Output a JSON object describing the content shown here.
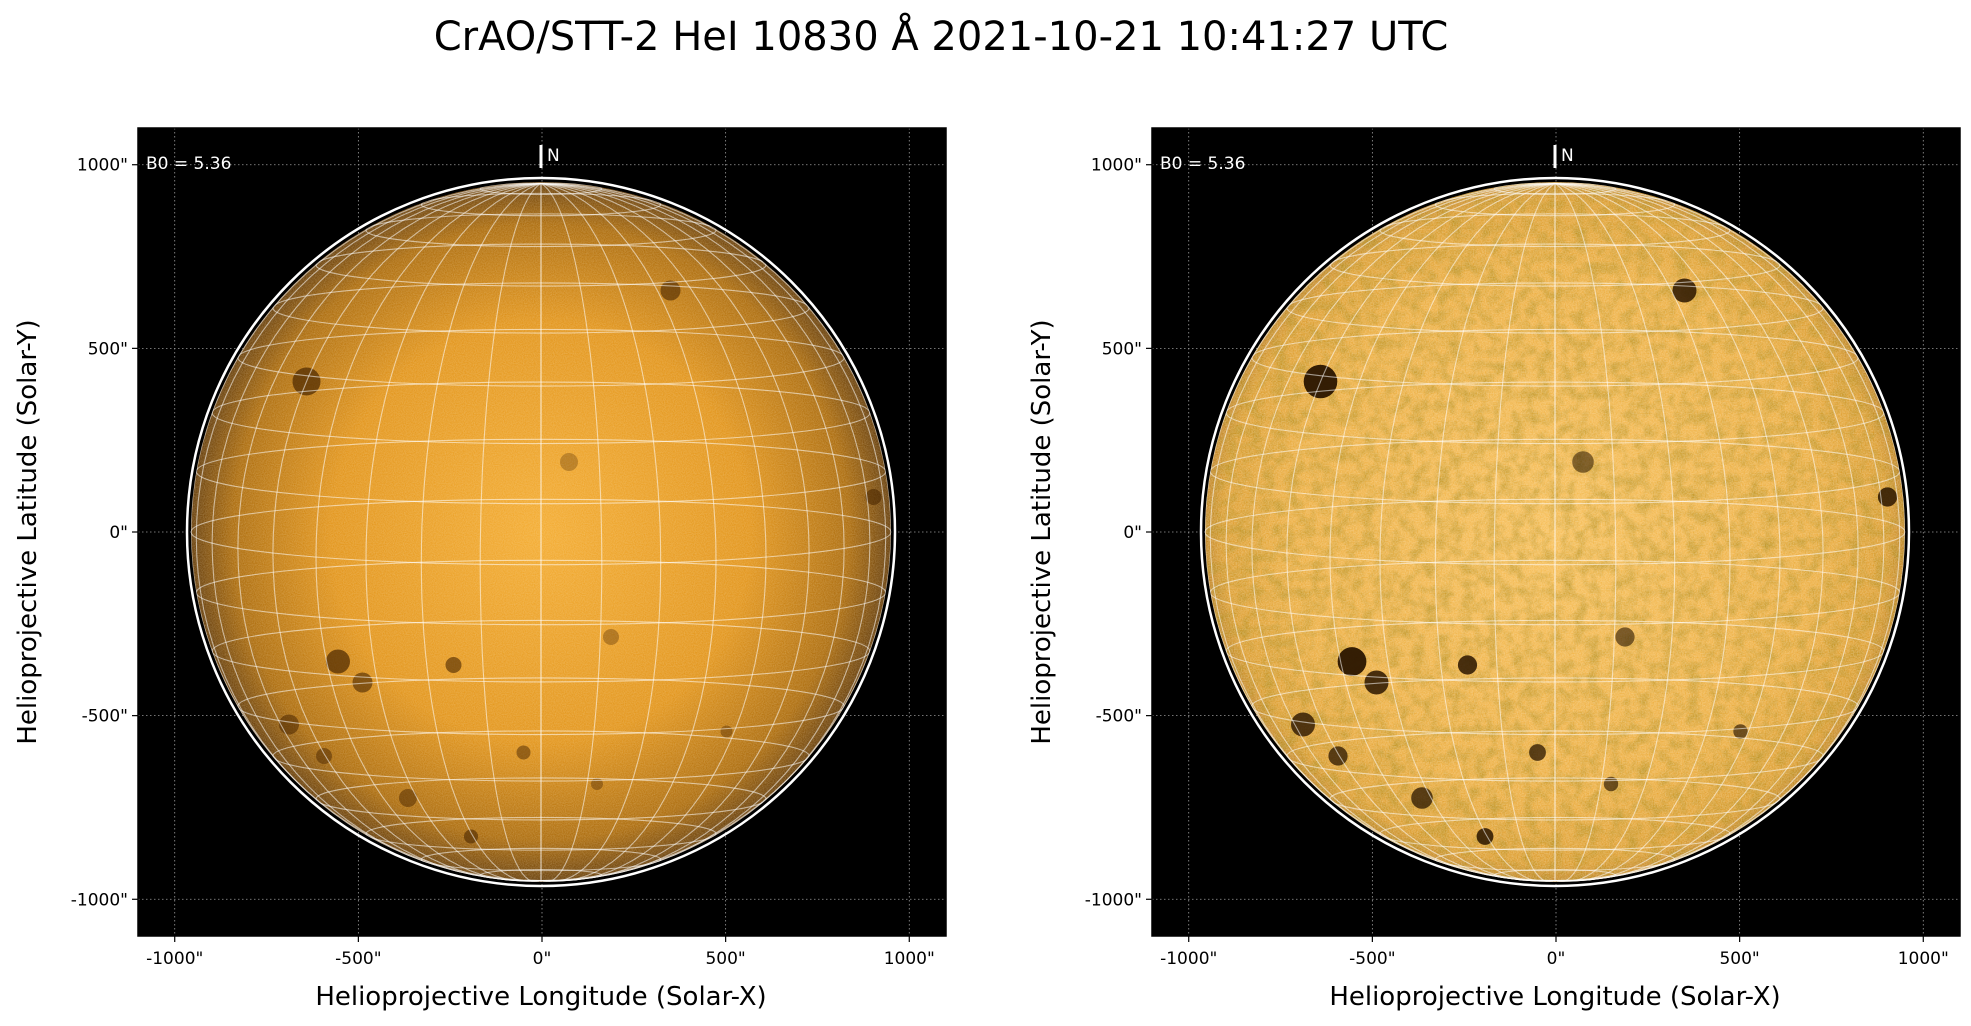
{
  "figure": {
    "title": "CrAO/STT-2 HeI 10830 Å 2021-10-21 10:41:27 UTC"
  },
  "panels": [
    {
      "id": "left",
      "xlabel": "Helioprojective Longitude (Solar-X)",
      "ylabel": "Helioprojective Latitude (Solar-Y)",
      "b0_label": "B0 = 5.36",
      "north_label": "N",
      "xticks": [
        "-1000\"",
        "-500\"",
        "0\"",
        "500\"",
        "1000\""
      ],
      "yticks": [
        "1000\"",
        "500\"",
        "0\"",
        "-500\"",
        "-1000\""
      ],
      "tick_values": [
        -1000,
        -500,
        0,
        500,
        1000
      ],
      "axis_range": [
        -1100,
        1100
      ],
      "solar_radius_arcsec": 965,
      "disk_color_center": "#f0a21c",
      "disk_color_limb": "#6e3f00"
    },
    {
      "id": "right",
      "xlabel": "Helioprojective Longitude (Solar-X)",
      "ylabel": "Helioprojective Latitude (Solar-Y)",
      "b0_label": "B0 = 5.36",
      "north_label": "N",
      "xticks": [
        "-1000\"",
        "-500\"",
        "0\"",
        "500\"",
        "1000\""
      ],
      "yticks": [
        "1000\"",
        "500\"",
        "0\"",
        "-500\"",
        "-1000\""
      ],
      "tick_values": [
        -1000,
        -500,
        0,
        500,
        1000
      ],
      "axis_range": [
        -1100,
        1100
      ],
      "solar_radius_arcsec": 965,
      "disk_color_center": "#f5b844",
      "disk_color_limb": "#c78414"
    }
  ],
  "colors": {
    "background": "#000000",
    "grid_white": "#ffffff",
    "frame_grid": "#888888"
  }
}
